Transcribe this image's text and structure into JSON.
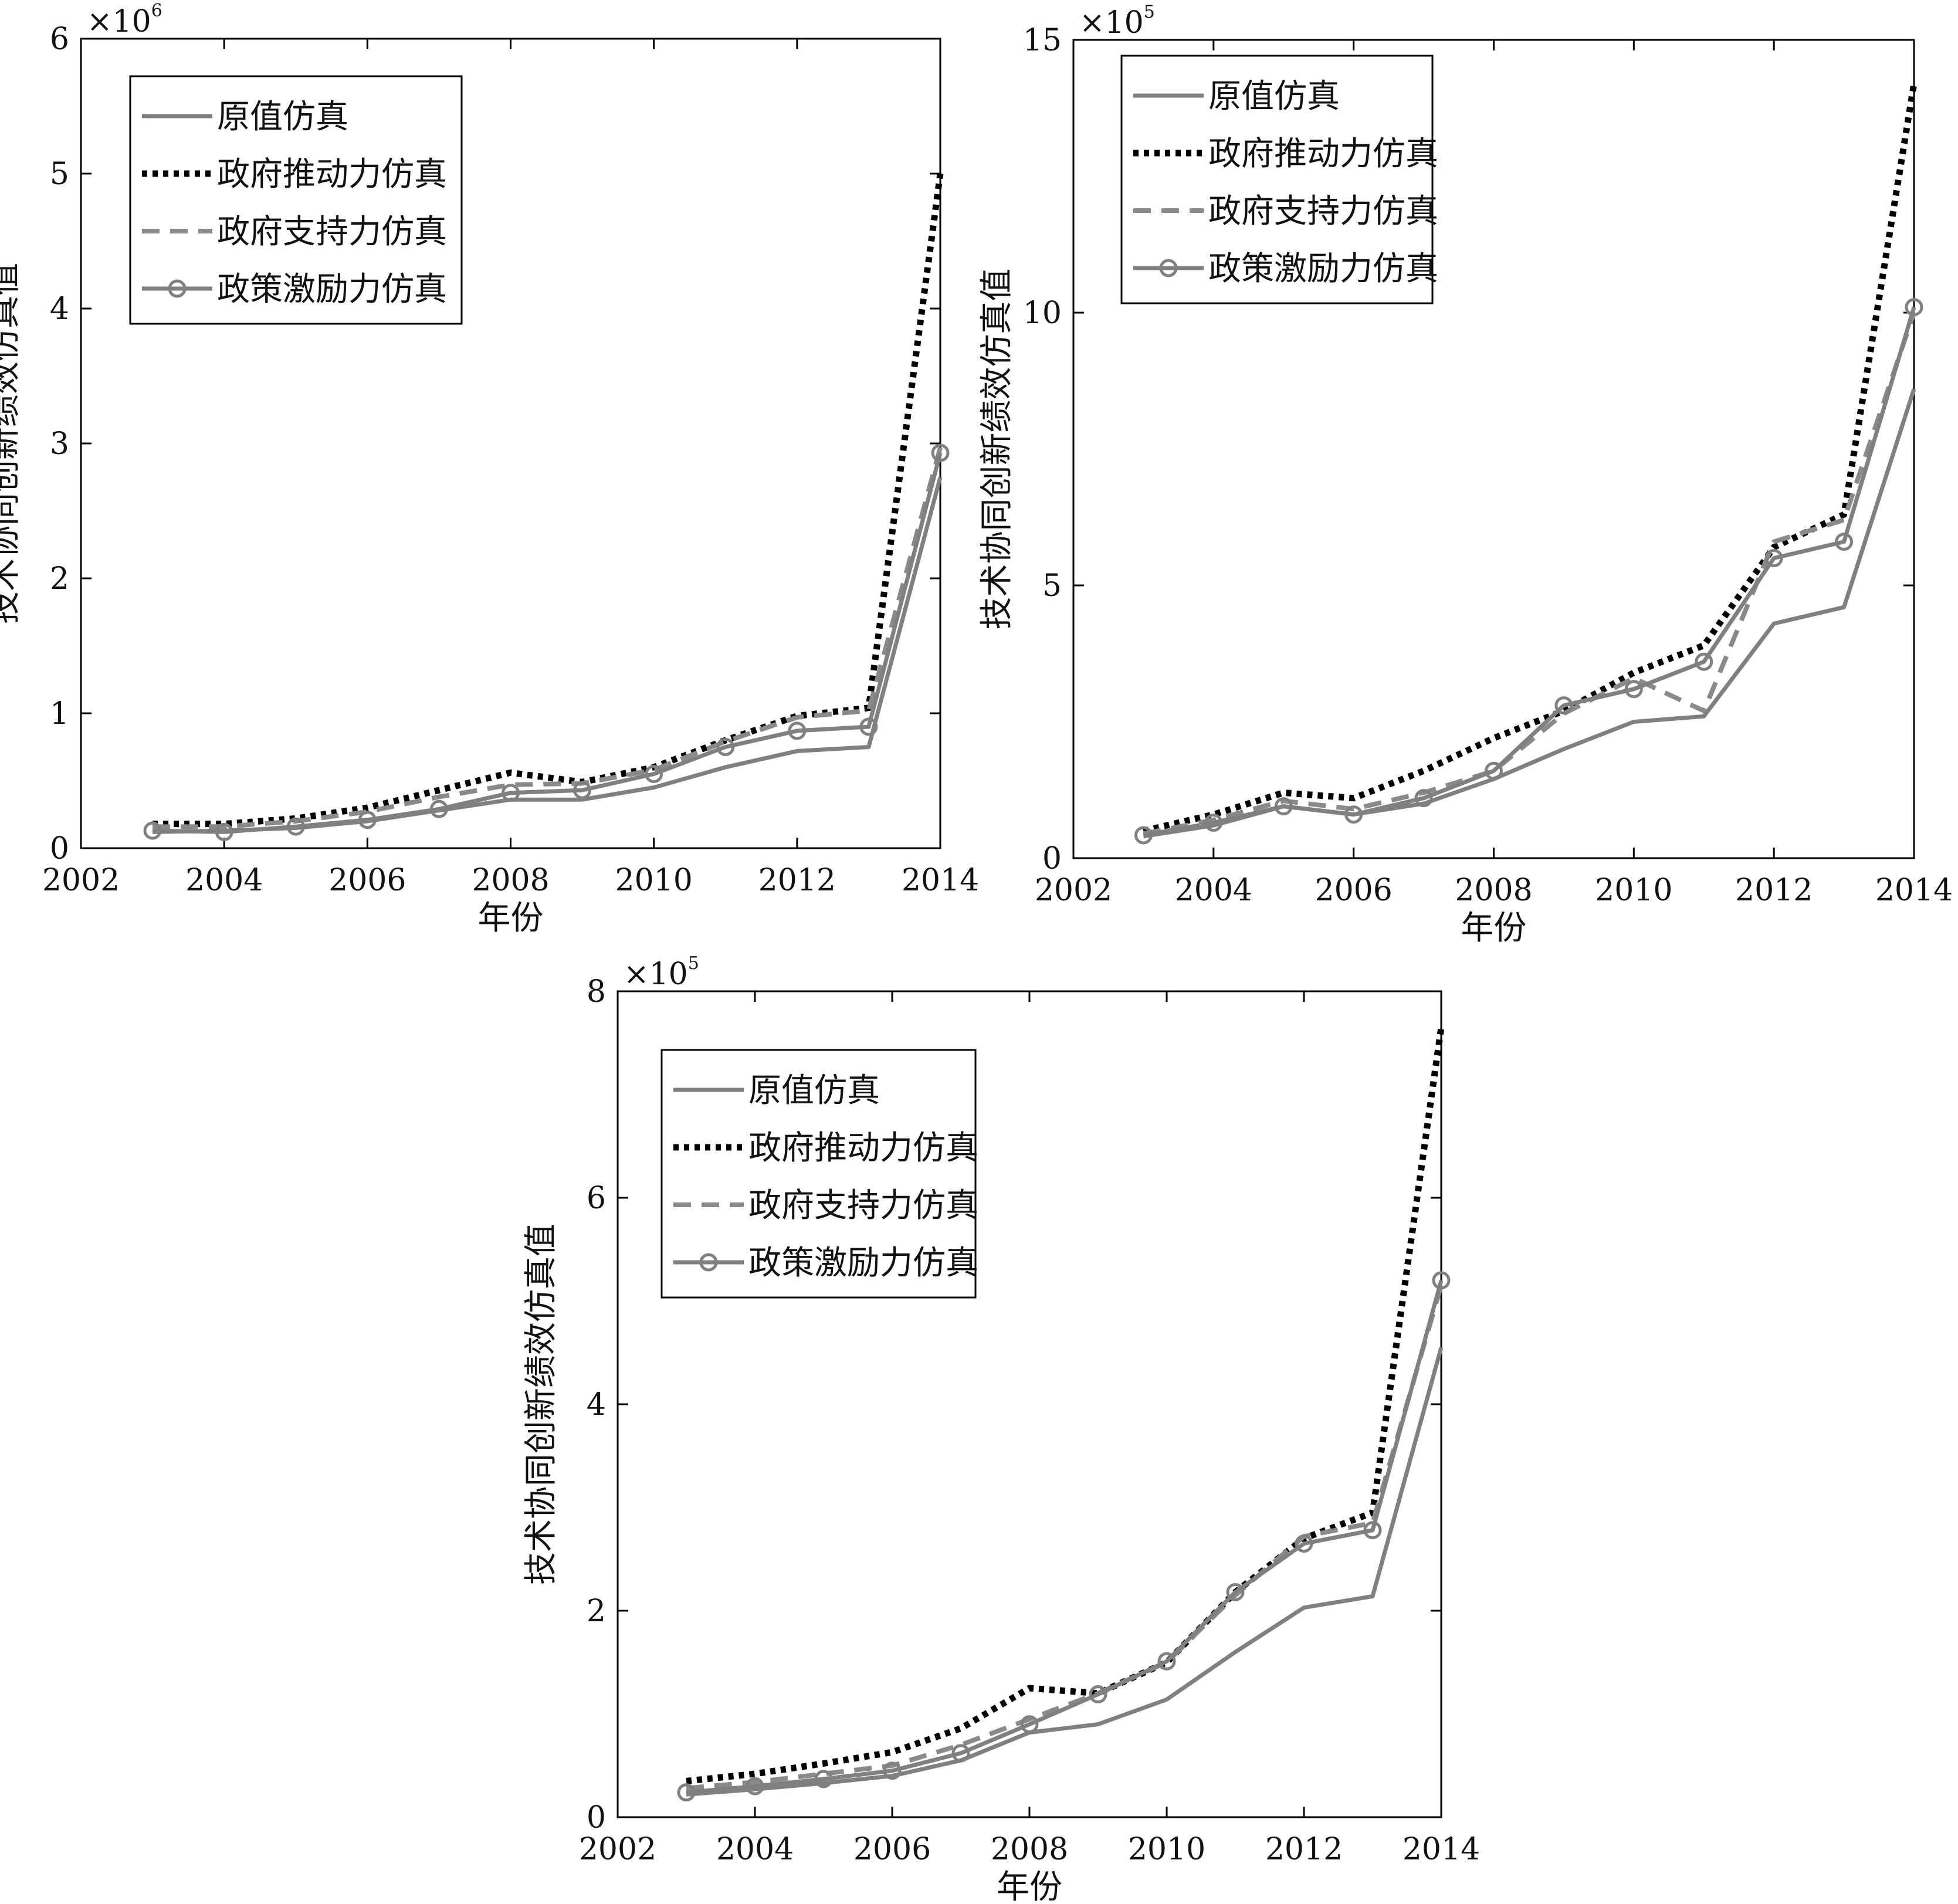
{
  "chart_data": [
    {
      "type": "line",
      "xlabel": "年份",
      "ylabel": "技术协同创新绩效仿真值",
      "scale_base": "×10",
      "scale_exponent": "6",
      "xlim": [
        2002,
        2014
      ],
      "ylim": [
        0,
        6
      ],
      "xticks": [
        "2002",
        "2004",
        "2006",
        "2008",
        "2010",
        "2012",
        "2014"
      ],
      "yticks": [
        "0",
        "1",
        "2",
        "3",
        "4",
        "5",
        "6"
      ],
      "x": [
        2003,
        2004,
        2005,
        2006,
        2007,
        2008,
        2009,
        2010,
        2011,
        2012,
        2013,
        2014
      ],
      "legend_position": "top-left",
      "series": [
        {
          "name": "原值仿真",
          "style": "solid",
          "values": [
            0.12,
            0.13,
            0.15,
            0.2,
            0.28,
            0.36,
            0.36,
            0.45,
            0.6,
            0.72,
            0.75,
            2.75
          ]
        },
        {
          "name": "政府推动力仿真",
          "style": "dotted",
          "values": [
            0.18,
            0.18,
            0.22,
            0.3,
            0.43,
            0.56,
            0.49,
            0.6,
            0.8,
            0.98,
            1.04,
            5.0
          ]
        },
        {
          "name": "政府支持力仿真",
          "style": "dashed",
          "values": [
            0.16,
            0.16,
            0.2,
            0.27,
            0.38,
            0.47,
            0.48,
            0.58,
            0.79,
            0.97,
            1.02,
            2.97
          ]
        },
        {
          "name": "政策激励力仿真",
          "style": "circle",
          "values": [
            0.13,
            0.12,
            0.16,
            0.21,
            0.29,
            0.41,
            0.43,
            0.55,
            0.75,
            0.87,
            0.9,
            2.93
          ]
        }
      ]
    },
    {
      "type": "line",
      "xlabel": "年份",
      "ylabel": "技术协同创新绩效仿真值",
      "scale_base": "×10",
      "scale_exponent": "5",
      "xlim": [
        2002,
        2014
      ],
      "ylim": [
        0,
        15
      ],
      "xticks": [
        "2002",
        "2004",
        "2006",
        "2008",
        "2010",
        "2012",
        "2014"
      ],
      "yticks": [
        "0",
        "5",
        "10",
        "15"
      ],
      "x": [
        2003,
        2004,
        2005,
        2006,
        2007,
        2008,
        2009,
        2010,
        2011,
        2012,
        2013,
        2014
      ],
      "legend_position": "top-left",
      "series": [
        {
          "name": "原值仿真",
          "style": "solid",
          "values": [
            0.4,
            0.6,
            0.95,
            0.8,
            1.0,
            1.45,
            2.0,
            2.5,
            2.6,
            4.3,
            4.6,
            8.6
          ]
        },
        {
          "name": "政府推动力仿真",
          "style": "dotted",
          "values": [
            0.5,
            0.8,
            1.2,
            1.1,
            1.6,
            2.2,
            2.7,
            3.4,
            3.9,
            5.7,
            6.3,
            14.2
          ]
        },
        {
          "name": "政府支持力仿真",
          "style": "dashed",
          "values": [
            0.45,
            0.7,
            1.05,
            0.9,
            1.2,
            1.6,
            2.65,
            3.3,
            2.7,
            5.8,
            6.2,
            10.0
          ]
        },
        {
          "name": "政策激励力仿真",
          "style": "circle",
          "values": [
            0.42,
            0.65,
            0.95,
            0.8,
            1.1,
            1.6,
            2.8,
            3.1,
            3.6,
            5.5,
            5.8,
            10.1
          ]
        }
      ]
    },
    {
      "type": "line",
      "xlabel": "年份",
      "ylabel": "技术协同创新绩效仿真值",
      "scale_base": "×10",
      "scale_exponent": "5",
      "xlim": [
        2002,
        2014
      ],
      "ylim": [
        0,
        8
      ],
      "xticks": [
        "2002",
        "2004",
        "2006",
        "2008",
        "2010",
        "2012",
        "2014"
      ],
      "yticks": [
        "0",
        "2",
        "4",
        "6",
        "8"
      ],
      "x": [
        2003,
        2004,
        2005,
        2006,
        2007,
        2008,
        2009,
        2010,
        2011,
        2012,
        2013,
        2014
      ],
      "legend_position": "top-left",
      "series": [
        {
          "name": "原值仿真",
          "style": "solid",
          "values": [
            0.22,
            0.27,
            0.33,
            0.4,
            0.55,
            0.82,
            0.9,
            1.14,
            1.6,
            2.03,
            2.14,
            4.55
          ]
        },
        {
          "name": "政府推动力仿真",
          "style": "dotted",
          "values": [
            0.35,
            0.42,
            0.52,
            0.63,
            0.86,
            1.25,
            1.2,
            1.5,
            2.18,
            2.7,
            2.95,
            7.65
          ]
        },
        {
          "name": "政府支持力仿真",
          "style": "dashed",
          "values": [
            0.28,
            0.34,
            0.42,
            0.5,
            0.7,
            0.95,
            1.2,
            1.5,
            2.15,
            2.72,
            2.85,
            5.15
          ]
        },
        {
          "name": "政策激励力仿真",
          "style": "circle",
          "values": [
            0.24,
            0.3,
            0.37,
            0.45,
            0.62,
            0.9,
            1.19,
            1.51,
            2.18,
            2.65,
            2.78,
            5.2
          ]
        }
      ]
    }
  ]
}
